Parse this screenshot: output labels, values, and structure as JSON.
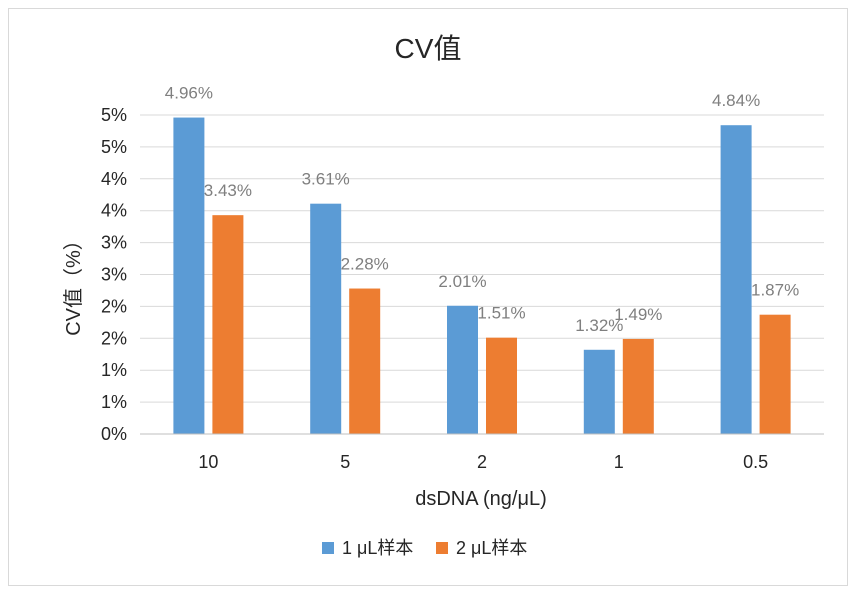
{
  "chart_data": {
    "type": "bar",
    "title": "CV值",
    "xlabel": "dsDNA (ng/μL)",
    "ylabel": "CV值（%）",
    "categories": [
      "10",
      "5",
      "2",
      "1",
      "0.5"
    ],
    "series": [
      {
        "name": "1 μL样本",
        "color": "#5b9bd5",
        "values": [
          4.96,
          3.61,
          2.01,
          1.32,
          4.84
        ],
        "labels": [
          "4.96%",
          "3.61%",
          "2.01%",
          "1.32%",
          "4.84%"
        ]
      },
      {
        "name": "2 μL样本",
        "color": "#ed7d31",
        "values": [
          3.43,
          2.28,
          1.51,
          1.49,
          1.87
        ],
        "labels": [
          "3.43%",
          "2.28%",
          "1.51%",
          "1.49%",
          "1.87%"
        ]
      }
    ],
    "ylim": [
      0,
      5
    ],
    "yticks": [
      0,
      0.5,
      1,
      1.5,
      2,
      2.5,
      3,
      3.5,
      4,
      4.5,
      5
    ],
    "ytick_labels": [
      "0%",
      "1%",
      "1%",
      "2%",
      "2%",
      "3%",
      "3%",
      "4%",
      "4%",
      "5%",
      "5%"
    ],
    "grid": true,
    "legend_position": "bottom"
  }
}
